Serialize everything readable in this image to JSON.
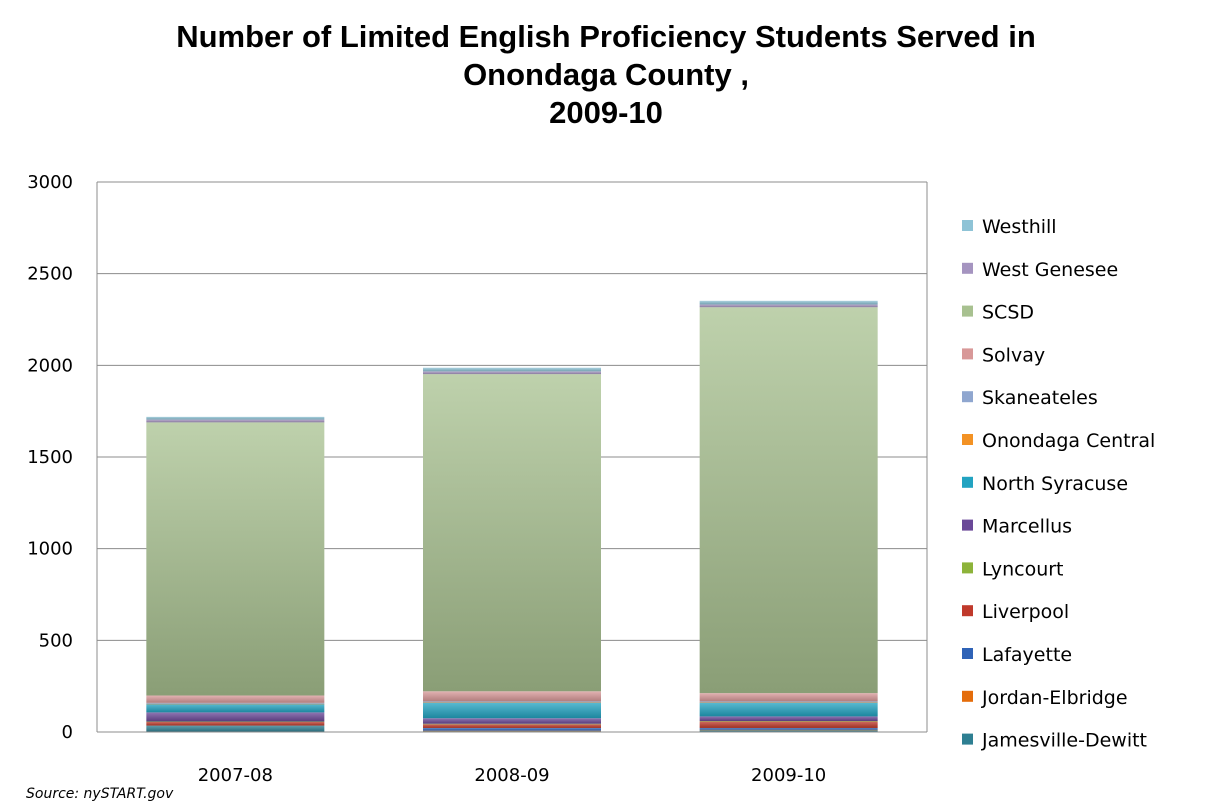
{
  "title_lines": [
    "Number of Limited English Proficiency Students Served in",
    "Onondaga County ,",
    "2009-10"
  ],
  "source": "Source: nySTART.gov",
  "chart_data": {
    "type": "bar",
    "stacked": true,
    "title": "Number of Limited English Proficiency Students Served in Onondaga County , 2009-10",
    "xlabel": "",
    "ylabel": "",
    "ylim": [
      0,
      3000
    ],
    "yticks": [
      "0",
      "500",
      "1000",
      "1500",
      "2000",
      "2500",
      "3000"
    ],
    "ytick_values": [
      0,
      500,
      1000,
      1500,
      2000,
      2500,
      3000
    ],
    "grid": true,
    "legend_position": "right",
    "categories": [
      "2007-08",
      "2008-09",
      "2009-10"
    ],
    "series": [
      {
        "name": "Jamesville-Dewitt",
        "color": "#2E7F92",
        "values": [
          35,
          5,
          10
        ]
      },
      {
        "name": "Jordan-Elbridge",
        "color": "#E46C0A",
        "values": [
          0,
          2,
          2
        ]
      },
      {
        "name": "Lafayette",
        "color": "#2F63B7",
        "values": [
          0,
          15,
          10
        ]
      },
      {
        "name": "Liverpool",
        "color": "#C0392B",
        "values": [
          20,
          20,
          35
        ]
      },
      {
        "name": "Lyncourt",
        "color": "#8DB33A",
        "values": [
          2,
          3,
          3
        ]
      },
      {
        "name": "Marcellus",
        "color": "#6A4898",
        "values": [
          50,
          30,
          25
        ]
      },
      {
        "name": "North Syracuse",
        "color": "#22A3C1",
        "values": [
          45,
          85,
          75
        ]
      },
      {
        "name": "Onondaga Central",
        "color": "#F39224",
        "values": [
          2,
          2,
          2
        ]
      },
      {
        "name": "Skaneateles",
        "color": "#8FA6CF",
        "values": [
          5,
          5,
          5
        ]
      },
      {
        "name": "Solvay",
        "color": "#D89898",
        "values": [
          40,
          55,
          45
        ]
      },
      {
        "name": "SCSD",
        "color": "#A8C190",
        "values": [
          1490,
          1730,
          2105
        ]
      },
      {
        "name": "West Genesee",
        "color": "#A594C0",
        "values": [
          15,
          15,
          15
        ]
      },
      {
        "name": "Westhill",
        "color": "#8EC3D6",
        "values": [
          15,
          20,
          20
        ]
      }
    ],
    "segment_note": "values are listed bottom-to-top per stacked bar"
  }
}
